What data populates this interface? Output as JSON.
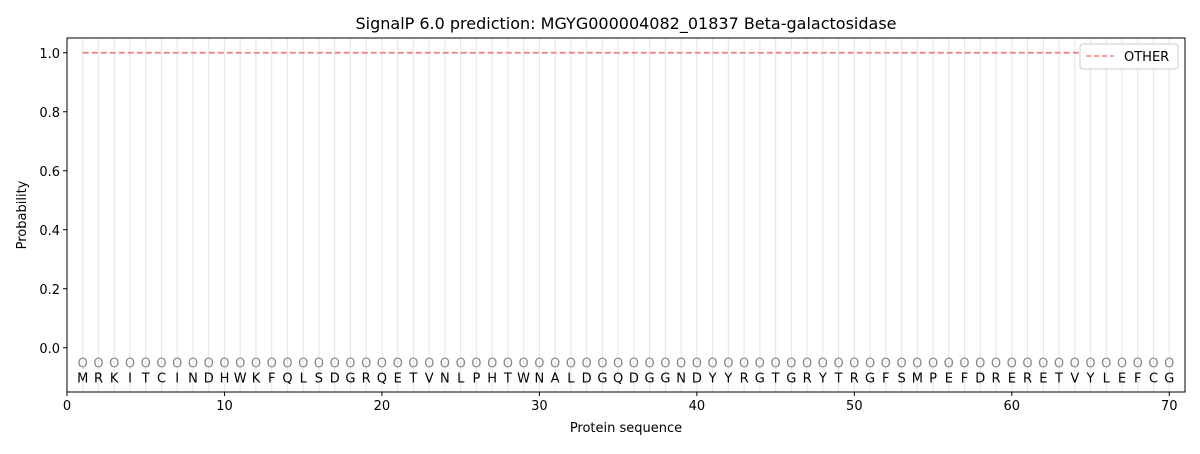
{
  "chart_data": {
    "type": "line",
    "title": "SignalP 6.0 prediction: MGYG000004082_01837 Beta-galactosidase",
    "xlabel": "Protein sequence",
    "ylabel": "Probability",
    "xlim": [
      0,
      71
    ],
    "ylim": [
      -0.15,
      1.05
    ],
    "xticks": [
      0,
      10,
      20,
      30,
      40,
      50,
      60,
      70
    ],
    "yticks": [
      0.0,
      0.2,
      0.4,
      0.6,
      0.8,
      1.0
    ],
    "ytick_labels": [
      "0.0",
      "0.2",
      "0.4",
      "0.6",
      "0.8",
      "1.0"
    ],
    "grid": "vertical lines at each residue",
    "legend_placement": "top-right",
    "sequence": "MRKITCINDHWKFQLSDGRQETVNLPHTWNALDGQDGGNDYYRGTGRYTRGFSMPEFDRERETVYLEFCG",
    "predicted_labels": "OOOOOOOOOOOOOOOOOOOOOOOOOOOOOOOOOOOOOOOOOOOOOOOOOOOOOOOOOOOOOOOOOOOOOO",
    "series": [
      {
        "name": "OTHER",
        "color": "#f08080",
        "style": "dashed",
        "x_start": 1,
        "x_end": 70,
        "value": 1.0
      }
    ]
  }
}
